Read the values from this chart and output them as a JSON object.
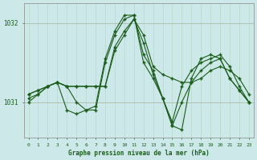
{
  "xlabel": "Graphe pression niveau de la mer (hPa)",
  "background_color": "#cce8e8",
  "plot_bg_color": "#cce8e8",
  "grid_color": "#aacccc",
  "line_color": "#1a5c1a",
  "marker_color": "#1a5c1a",
  "ytick_labels": [
    "1031",
    "1032"
  ],
  "ytick_vals": [
    1031.0,
    1032.0
  ],
  "ylim": [
    1030.55,
    1032.25
  ],
  "xlim": [
    -0.5,
    23.5
  ],
  "xticks": [
    0,
    1,
    2,
    3,
    4,
    5,
    6,
    7,
    8,
    9,
    10,
    11,
    12,
    13,
    14,
    15,
    16,
    17,
    18,
    19,
    20,
    21,
    22,
    23
  ],
  "series": [
    [
      1031.1,
      1031.15,
      1031.2,
      1031.25,
      1031.2,
      1031.2,
      1031.2,
      1031.2,
      1031.2,
      1031.65,
      1031.85,
      1032.05,
      1031.85,
      1031.45,
      1031.35,
      1031.3,
      1031.25,
      1031.25,
      1031.3,
      1031.4,
      1031.45,
      1031.4,
      1031.3,
      1031.1
    ],
    [
      1031.1,
      1031.15,
      1031.2,
      1031.25,
      1031.2,
      1031.2,
      1031.2,
      1031.2,
      1031.2,
      1031.7,
      1031.9,
      1032.05,
      1031.75,
      1031.35,
      1031.05,
      1030.75,
      1031.2,
      1031.4,
      1031.5,
      1031.55,
      1031.6,
      1031.45,
      1031.2,
      1031.0
    ],
    [
      1031.05,
      1031.1,
      1031.2,
      1031.25,
      1031.2,
      1031.0,
      1030.9,
      1030.9,
      1031.5,
      1031.85,
      1032.05,
      1032.1,
      1031.6,
      1031.4,
      1031.05,
      1030.7,
      1031.0,
      1031.25,
      1031.4,
      1031.5,
      1031.55,
      1031.3,
      1031.15,
      1031.0
    ],
    [
      1031.0,
      1031.1,
      1031.2,
      1031.25,
      1030.9,
      1030.85,
      1030.9,
      1030.95,
      1031.55,
      1031.9,
      1032.1,
      1032.1,
      1031.5,
      1031.3,
      1031.05,
      1030.7,
      1030.65,
      1031.3,
      1031.55,
      1031.6,
      1031.55,
      1031.3,
      1031.15,
      1031.0
    ]
  ]
}
